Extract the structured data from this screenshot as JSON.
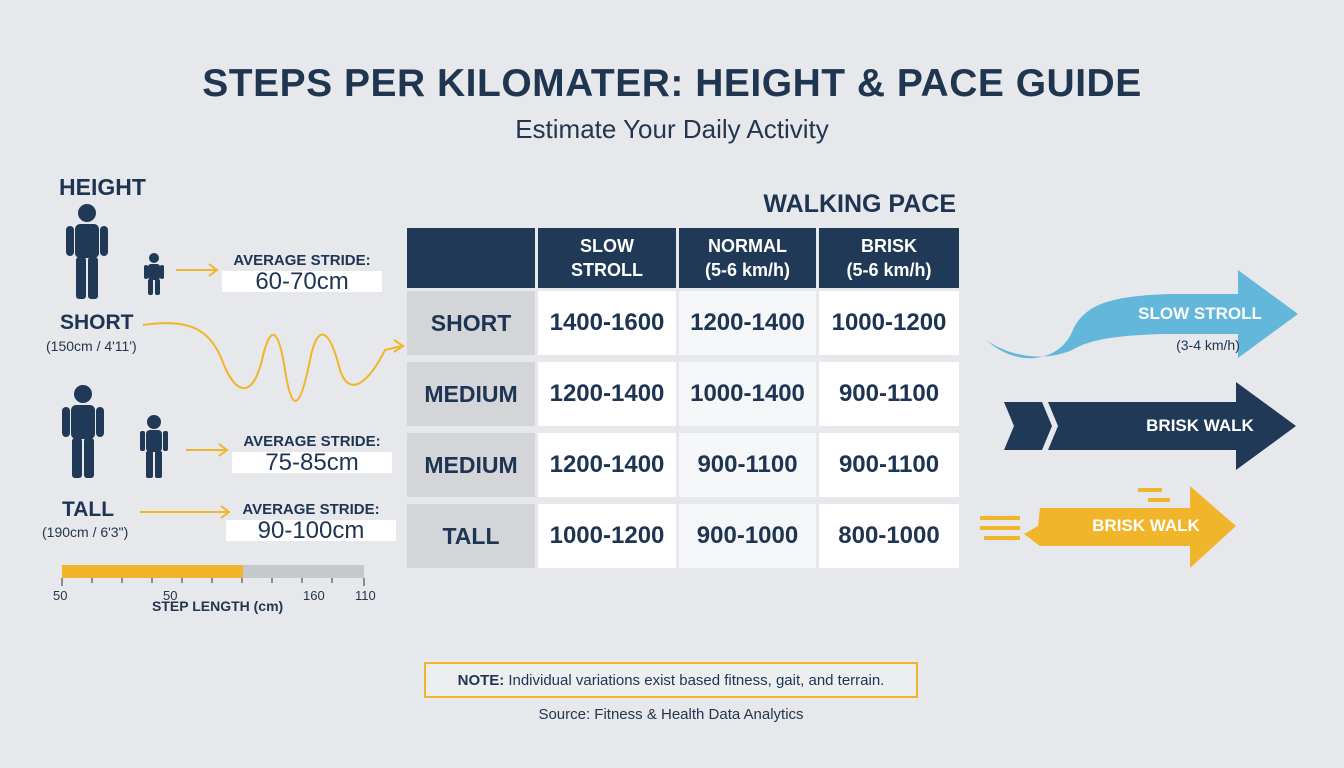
{
  "header": {
    "title": "STEPS PER KILOMATER: HEIGHT & PACE GUIDE",
    "subtitle": "Estimate Your Daily Activity"
  },
  "height_panel": {
    "heading": "HEIGHT",
    "short_label": "SHORT",
    "short_detail": "(150cm / 4'11')",
    "tall_label": "TALL",
    "tall_detail": "(190cm / 6'3\")",
    "strides": [
      {
        "title": "AVERAGE STRIDE:",
        "value": "60-70cm"
      },
      {
        "title": "AVERAGE STRIDE:",
        "value": "75-85cm"
      },
      {
        "title": "AVERAGE STRIDE:",
        "value": "90-100cm"
      }
    ],
    "step_scale": {
      "label": "STEP LENGTH (cm)",
      "ticks": [
        "50",
        "50",
        "160",
        "110"
      ],
      "filled_fraction": 0.6
    }
  },
  "arrows": {
    "slow_stroll_label": "SLOW STROLL",
    "slow_stroll_detail": "(3-4 km/h)",
    "brisk_walk_label_1": "BRISK WALK",
    "brisk_walk_label_2": "BRISK WALK"
  },
  "chart_data": {
    "type": "table",
    "title": "WALKING PACE",
    "columns": [
      {
        "line1": "SLOW",
        "line2": "STROLL"
      },
      {
        "line1": "NORMAL",
        "line2": "(5-6 km/h)"
      },
      {
        "line1": "BRISK",
        "line2": "(5-6 km/h)"
      }
    ],
    "rows": [
      {
        "label": "SHORT",
        "values": [
          "1400-1600",
          "1200-1400",
          "1000-1200"
        ]
      },
      {
        "label": "MEDIUM",
        "values": [
          "1200-1400",
          "1000-1400",
          "900-1100"
        ]
      },
      {
        "label": "MEDIUM",
        "values": [
          "1200-1400",
          "900-1100",
          "900-1100"
        ]
      },
      {
        "label": "TALL",
        "values": [
          "1000-1200",
          "900-1000",
          "800-1000"
        ]
      }
    ]
  },
  "footer": {
    "note_label": "NOTE:",
    "note_text": "Individual variations exist based fitness, gait, and terrain.",
    "source": "Source: Fitness & Health Data Analytics"
  },
  "colors": {
    "navy": "#1f3956",
    "yellow": "#f0b52a",
    "light_blue": "#63b7da",
    "background": "#e6e8eb"
  }
}
